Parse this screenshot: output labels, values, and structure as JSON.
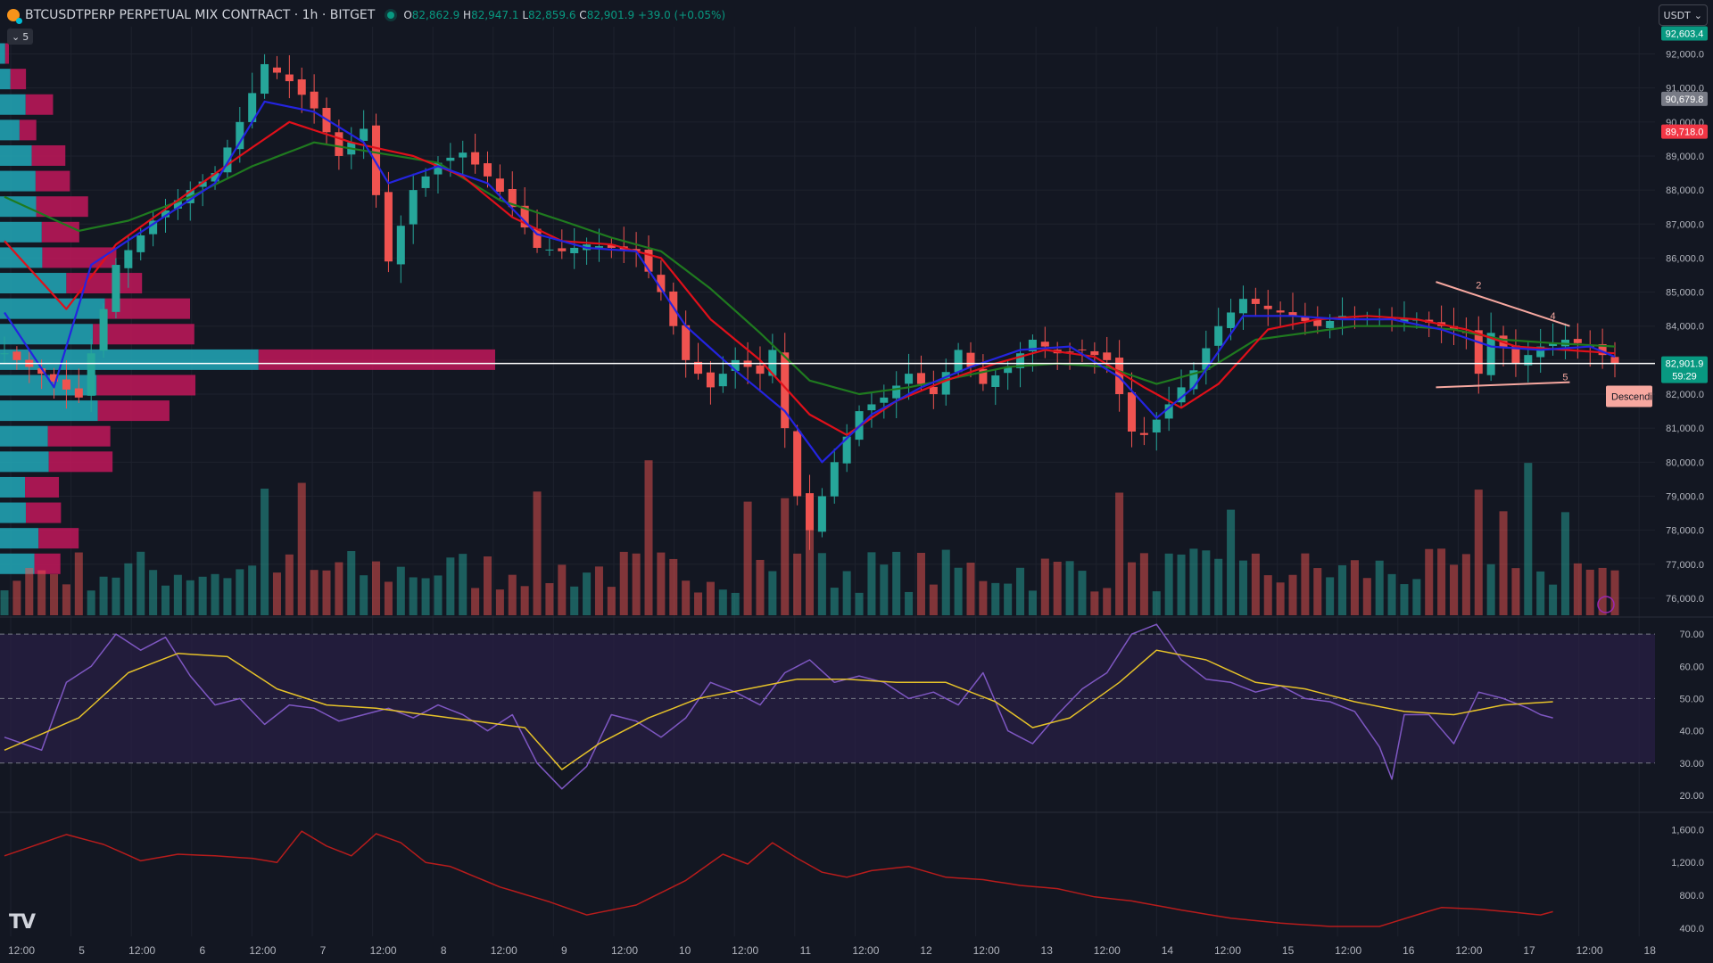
{
  "header": {
    "symbol": "BTCUSDTPERP PERPETUAL MIX CONTRACT · 1h · BITGET",
    "o_label": "O",
    "o": "82,862.9",
    "h_label": "H",
    "h": "82,947.1",
    "l_label": "L",
    "l": "82,859.6",
    "c_label": "C",
    "c": "82,901.9",
    "change": "+39.0 (+0.05%)"
  },
  "currency_button": {
    "label": "USDT",
    "icon": "chevron-down-icon"
  },
  "indicator_toggle": {
    "label": "5",
    "icon": "chevron-down-icon"
  },
  "watermark": "TV",
  "colors": {
    "background": "#131722",
    "up": "#26a69a",
    "down": "#ef5350",
    "ema_fast": "#2424e0",
    "ema_mid": "#e0101a",
    "ema_slow": "#1f7a1f",
    "rsi": "#7e57c2",
    "rsi_ma": "#e6c229",
    "lower": "#b71c1c",
    "vp_up": "#22a8b8",
    "vp_down": "#c2185b"
  },
  "chart_data": [
    {
      "type": "line",
      "name_hidden": true,
      "x_ticks": [
        "12:00",
        "5",
        "12:00",
        "6",
        "12:00",
        "7",
        "12:00",
        "8",
        "12:00",
        "9",
        "12:00",
        "10",
        "12:00",
        "11",
        "12:00",
        "12",
        "12:00",
        "13",
        "12:00",
        "14",
        "12:00",
        "15",
        "12:00",
        "16",
        "12:00",
        "17",
        "12:00",
        "18"
      ],
      "price_axis_ticks": [
        "92,000.0",
        "91,000.0",
        "90,000.0",
        "89,000.0",
        "88,000.0",
        "87,000.0",
        "86,000.0",
        "85,000.0",
        "84,000.0",
        "83,000.0",
        "82,000.0",
        "81,000.0",
        "80,000.0",
        "79,000.0",
        "78,000.0",
        "77,000.0",
        "76,000.0"
      ],
      "ylim": [
        75500,
        92800
      ],
      "price_badges": [
        {
          "value": "92,603.4",
          "color": "#089981"
        },
        {
          "value": "90,679.8",
          "color": "#787b86"
        },
        {
          "value": "89,718.0",
          "color": "#f23645"
        },
        {
          "value": "82,901.9",
          "sub": "59:29",
          "color": "#089981"
        }
      ],
      "close_series_keypoints": [
        [
          0,
          83200
        ],
        [
          3,
          82600
        ],
        [
          6,
          81900
        ],
        [
          9,
          85800
        ],
        [
          12,
          87100
        ],
        [
          15,
          88000
        ],
        [
          17,
          88500
        ],
        [
          19,
          90000
        ],
        [
          21,
          91700
        ],
        [
          23,
          91200
        ],
        [
          25,
          90400
        ],
        [
          27,
          89000
        ],
        [
          29,
          89800
        ],
        [
          31,
          85900
        ],
        [
          33,
          88000
        ],
        [
          35,
          88800
        ],
        [
          37,
          89100
        ],
        [
          39,
          88400
        ],
        [
          41,
          87500
        ],
        [
          43,
          86300
        ],
        [
          45,
          86200
        ],
        [
          47,
          86400
        ],
        [
          49,
          86300
        ],
        [
          51,
          86200
        ],
        [
          53,
          85000
        ],
        [
          55,
          83000
        ],
        [
          57,
          82200
        ],
        [
          59,
          83000
        ],
        [
          61,
          82600
        ],
        [
          62,
          83300
        ],
        [
          63,
          81000
        ],
        [
          64,
          79000
        ],
        [
          65,
          78000
        ],
        [
          67,
          80000
        ],
        [
          69,
          81500
        ],
        [
          71,
          81900
        ],
        [
          73,
          82600
        ],
        [
          75,
          82000
        ],
        [
          77,
          83300
        ],
        [
          79,
          82300
        ],
        [
          81,
          82800
        ],
        [
          83,
          83600
        ],
        [
          85,
          83200
        ],
        [
          87,
          83300
        ],
        [
          89,
          83000
        ],
        [
          90,
          82000
        ],
        [
          91,
          80900
        ],
        [
          92,
          80800
        ],
        [
          94,
          81700
        ],
        [
          96,
          82700
        ],
        [
          98,
          84000
        ],
        [
          100,
          84800
        ],
        [
          102,
          84500
        ],
        [
          104,
          84300
        ],
        [
          106,
          84000
        ],
        [
          108,
          84300
        ],
        [
          110,
          84200
        ],
        [
          112,
          84200
        ],
        [
          114,
          84200
        ],
        [
          116,
          84000
        ],
        [
          118,
          83800
        ],
        [
          119,
          82600
        ],
        [
          120,
          83800
        ],
        [
          122,
          82900
        ],
        [
          124,
          83400
        ],
        [
          126,
          83600
        ],
        [
          128,
          83400
        ],
        [
          130,
          82900
        ]
      ],
      "ema_fast_keypoints": [
        [
          0,
          84400
        ],
        [
          4,
          82200
        ],
        [
          7,
          85800
        ],
        [
          12,
          87000
        ],
        [
          17,
          88200
        ],
        [
          21,
          90600
        ],
        [
          25,
          90300
        ],
        [
          29,
          89400
        ],
        [
          31,
          88200
        ],
        [
          35,
          88700
        ],
        [
          39,
          88200
        ],
        [
          43,
          86700
        ],
        [
          47,
          86300
        ],
        [
          51,
          86200
        ],
        [
          55,
          84000
        ],
        [
          59,
          82700
        ],
        [
          63,
          81500
        ],
        [
          66,
          80000
        ],
        [
          70,
          81400
        ],
        [
          74,
          82200
        ],
        [
          78,
          82800
        ],
        [
          82,
          83300
        ],
        [
          86,
          83400
        ],
        [
          90,
          82500
        ],
        [
          93,
          81300
        ],
        [
          96,
          82200
        ],
        [
          100,
          84300
        ],
        [
          104,
          84300
        ],
        [
          108,
          84200
        ],
        [
          112,
          84200
        ],
        [
          116,
          83900
        ],
        [
          120,
          83400
        ],
        [
          124,
          83300
        ],
        [
          128,
          83400
        ],
        [
          130,
          83100
        ]
      ],
      "ema_mid_keypoints": [
        [
          0,
          86500
        ],
        [
          5,
          84500
        ],
        [
          9,
          86400
        ],
        [
          14,
          87700
        ],
        [
          19,
          89000
        ],
        [
          23,
          90000
        ],
        [
          28,
          89400
        ],
        [
          33,
          89000
        ],
        [
          37,
          88400
        ],
        [
          41,
          87200
        ],
        [
          45,
          86500
        ],
        [
          49,
          86400
        ],
        [
          53,
          86000
        ],
        [
          57,
          84200
        ],
        [
          61,
          83000
        ],
        [
          65,
          81400
        ],
        [
          68,
          80800
        ],
        [
          72,
          81800
        ],
        [
          76,
          82400
        ],
        [
          80,
          82900
        ],
        [
          84,
          83300
        ],
        [
          88,
          83100
        ],
        [
          92,
          82200
        ],
        [
          95,
          81600
        ],
        [
          98,
          82300
        ],
        [
          102,
          83900
        ],
        [
          106,
          84200
        ],
        [
          110,
          84300
        ],
        [
          114,
          84200
        ],
        [
          118,
          83900
        ],
        [
          122,
          83400
        ],
        [
          126,
          83300
        ],
        [
          130,
          83200
        ]
      ],
      "ema_slow_keypoints": [
        [
          0,
          87800
        ],
        [
          6,
          86800
        ],
        [
          10,
          87100
        ],
        [
          15,
          87800
        ],
        [
          20,
          88700
        ],
        [
          25,
          89400
        ],
        [
          30,
          89100
        ],
        [
          35,
          88800
        ],
        [
          40,
          87700
        ],
        [
          45,
          87100
        ],
        [
          49,
          86600
        ],
        [
          53,
          86200
        ],
        [
          57,
          85100
        ],
        [
          61,
          83800
        ],
        [
          65,
          82400
        ],
        [
          69,
          82000
        ],
        [
          73,
          82200
        ],
        [
          77,
          82500
        ],
        [
          81,
          82800
        ],
        [
          85,
          82900
        ],
        [
          89,
          82800
        ],
        [
          93,
          82300
        ],
        [
          97,
          82700
        ],
        [
          101,
          83600
        ],
        [
          105,
          83800
        ],
        [
          109,
          84000
        ],
        [
          113,
          84000
        ],
        [
          117,
          83900
        ],
        [
          121,
          83600
        ],
        [
          125,
          83500
        ],
        [
          130,
          83400
        ]
      ],
      "annotation": "Descendi",
      "pattern_points": [
        "2",
        "4",
        "5"
      ]
    },
    {
      "type": "line",
      "panel": "rsi",
      "y_ticks": [
        "70.00",
        "60.00",
        "50.00",
        "40.00",
        "30.00",
        "20.00"
      ],
      "ylim": [
        15,
        75
      ],
      "bands": [
        30,
        50,
        70
      ],
      "rsi_keypoints": [
        [
          0,
          38
        ],
        [
          3,
          34
        ],
        [
          5,
          55
        ],
        [
          7,
          60
        ],
        [
          9,
          70
        ],
        [
          11,
          65
        ],
        [
          13,
          69
        ],
        [
          15,
          57
        ],
        [
          17,
          48
        ],
        [
          19,
          50
        ],
        [
          21,
          42
        ],
        [
          23,
          48
        ],
        [
          25,
          47
        ],
        [
          27,
          43
        ],
        [
          29,
          45
        ],
        [
          31,
          47
        ],
        [
          33,
          44
        ],
        [
          35,
          48
        ],
        [
          37,
          45
        ],
        [
          39,
          40
        ],
        [
          41,
          45
        ],
        [
          43,
          30
        ],
        [
          45,
          22
        ],
        [
          47,
          29
        ],
        [
          49,
          45
        ],
        [
          51,
          43
        ],
        [
          53,
          38
        ],
        [
          55,
          44
        ],
        [
          57,
          55
        ],
        [
          59,
          52
        ],
        [
          61,
          48
        ],
        [
          63,
          58
        ],
        [
          65,
          62
        ],
        [
          67,
          55
        ],
        [
          69,
          57
        ],
        [
          71,
          55
        ],
        [
          73,
          50
        ],
        [
          75,
          52
        ],
        [
          77,
          48
        ],
        [
          79,
          58
        ],
        [
          81,
          40
        ],
        [
          83,
          36
        ],
        [
          85,
          45
        ],
        [
          87,
          53
        ],
        [
          89,
          58
        ],
        [
          91,
          70
        ],
        [
          93,
          73
        ],
        [
          95,
          62
        ],
        [
          97,
          56
        ],
        [
          99,
          55
        ],
        [
          101,
          52
        ],
        [
          103,
          54
        ],
        [
          105,
          50
        ],
        [
          107,
          49
        ],
        [
          109,
          46
        ],
        [
          111,
          35
        ],
        [
          112,
          25
        ],
        [
          113,
          45
        ],
        [
          115,
          45
        ],
        [
          117,
          36
        ],
        [
          119,
          52
        ],
        [
          121,
          50
        ],
        [
          123,
          47
        ],
        [
          124,
          45
        ],
        [
          125,
          44
        ]
      ],
      "rsi_ma_keypoints": [
        [
          0,
          34
        ],
        [
          6,
          44
        ],
        [
          10,
          58
        ],
        [
          14,
          64
        ],
        [
          18,
          63
        ],
        [
          22,
          53
        ],
        [
          26,
          48
        ],
        [
          30,
          47
        ],
        [
          34,
          45
        ],
        [
          38,
          43
        ],
        [
          42,
          41
        ],
        [
          45,
          28
        ],
        [
          48,
          36
        ],
        [
          52,
          44
        ],
        [
          56,
          50
        ],
        [
          60,
          53
        ],
        [
          64,
          56
        ],
        [
          68,
          56
        ],
        [
          72,
          55
        ],
        [
          76,
          55
        ],
        [
          80,
          49
        ],
        [
          83,
          41
        ],
        [
          86,
          44
        ],
        [
          90,
          55
        ],
        [
          93,
          65
        ],
        [
          97,
          62
        ],
        [
          101,
          55
        ],
        [
          105,
          53
        ],
        [
          109,
          49
        ],
        [
          113,
          46
        ],
        [
          117,
          45
        ],
        [
          121,
          48
        ],
        [
          125,
          49
        ]
      ]
    },
    {
      "type": "line",
      "panel": "lower",
      "y_ticks": [
        "1,600.0",
        "1,200.0",
        "800.0",
        "400.0"
      ],
      "ylim": [
        300,
        1800
      ],
      "keypoints": [
        [
          0,
          1280
        ],
        [
          5,
          1540
        ],
        [
          8,
          1420
        ],
        [
          11,
          1220
        ],
        [
          14,
          1300
        ],
        [
          17,
          1280
        ],
        [
          20,
          1250
        ],
        [
          22,
          1200
        ],
        [
          24,
          1580
        ],
        [
          26,
          1400
        ],
        [
          28,
          1280
        ],
        [
          30,
          1550
        ],
        [
          32,
          1440
        ],
        [
          34,
          1200
        ],
        [
          36,
          1150
        ],
        [
          40,
          900
        ],
        [
          44,
          720
        ],
        [
          47,
          560
        ],
        [
          51,
          680
        ],
        [
          55,
          980
        ],
        [
          58,
          1300
        ],
        [
          60,
          1180
        ],
        [
          62,
          1440
        ],
        [
          64,
          1250
        ],
        [
          66,
          1080
        ],
        [
          68,
          1020
        ],
        [
          70,
          1100
        ],
        [
          73,
          1150
        ],
        [
          76,
          1020
        ],
        [
          79,
          990
        ],
        [
          82,
          920
        ],
        [
          85,
          880
        ],
        [
          88,
          780
        ],
        [
          91,
          730
        ],
        [
          95,
          620
        ],
        [
          99,
          520
        ],
        [
          103,
          460
        ],
        [
          107,
          420
        ],
        [
          111,
          420
        ],
        [
          114,
          560
        ],
        [
          116,
          650
        ],
        [
          119,
          630
        ],
        [
          122,
          590
        ],
        [
          124,
          560
        ],
        [
          125,
          600
        ]
      ]
    }
  ]
}
